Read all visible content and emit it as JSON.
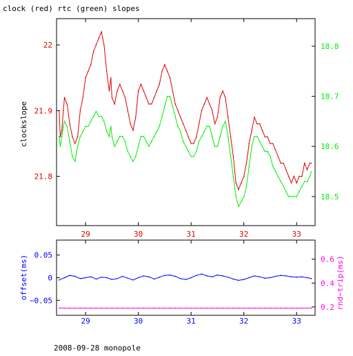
{
  "title": "clock (red) rtc (green) slopes",
  "footer": "2008-09-28 monopole",
  "colors": {
    "background": "#ffffff",
    "axis": "#000000",
    "clock": "#dd0000",
    "rtc": "#00ee00",
    "offset": "#0000ff",
    "roundtrip": "#ff00ff"
  },
  "chart_data": [
    {
      "type": "line",
      "title": "clock (red) rtc (green) slopes",
      "xlim": [
        28.45,
        33.35
      ],
      "x_ticks": [
        29,
        30,
        31,
        32,
        33
      ],
      "x_tick_labels": [
        "29",
        "30",
        "31",
        "32",
        "33"
      ],
      "left_axis": {
        "label": "clockslope",
        "ylim": [
          21.725,
          22.04
        ],
        "ticks": [
          21.8,
          21.9,
          22
        ],
        "tick_labels": [
          "21.8",
          "21.9",
          "22"
        ]
      },
      "right_axis": {
        "label": "",
        "ylim": [
          18.442,
          18.855
        ],
        "ticks": [
          18.5,
          18.6,
          18.7,
          18.8
        ],
        "tick_labels": [
          "18.5",
          "18.6",
          "18.7",
          "18.8"
        ]
      },
      "series": [
        {
          "name": "clock (red)",
          "axis": "left",
          "color": "#dd0000",
          "x": [
            28.5,
            28.52,
            28.55,
            28.58,
            28.6,
            28.65,
            28.7,
            28.75,
            28.8,
            28.85,
            28.9,
            28.95,
            29.0,
            29.05,
            29.1,
            29.15,
            29.2,
            29.25,
            29.3,
            29.35,
            29.4,
            29.45,
            29.48,
            29.5,
            29.55,
            29.6,
            29.65,
            29.7,
            29.75,
            29.8,
            29.85,
            29.9,
            29.95,
            30.0,
            30.05,
            30.1,
            30.15,
            30.2,
            30.25,
            30.3,
            30.35,
            30.4,
            30.45,
            30.5,
            30.55,
            30.6,
            30.65,
            30.7,
            30.75,
            30.8,
            30.85,
            30.9,
            30.95,
            31.0,
            31.05,
            31.1,
            31.15,
            31.2,
            31.25,
            31.3,
            31.35,
            31.4,
            31.45,
            31.5,
            31.55,
            31.6,
            31.65,
            31.7,
            31.75,
            31.8,
            31.85,
            31.9,
            31.95,
            32.0,
            32.05,
            32.1,
            32.15,
            32.2,
            32.25,
            32.3,
            32.35,
            32.4,
            32.45,
            32.5,
            32.55,
            32.6,
            32.65,
            32.7,
            32.75,
            32.8,
            32.85,
            32.9,
            32.95,
            33.0,
            33.05,
            33.1,
            33.15,
            33.2,
            33.25,
            33.28
          ],
          "y": [
            21.9,
            21.86,
            21.87,
            21.9,
            21.92,
            21.91,
            21.88,
            21.86,
            21.85,
            21.86,
            21.9,
            21.92,
            21.95,
            21.96,
            21.97,
            21.99,
            22.0,
            22.01,
            22.02,
            22.0,
            21.96,
            21.93,
            21.95,
            21.92,
            21.91,
            21.93,
            21.94,
            21.93,
            21.92,
            21.9,
            21.88,
            21.87,
            21.89,
            21.93,
            21.94,
            21.93,
            21.92,
            21.91,
            21.91,
            21.92,
            21.93,
            21.94,
            21.96,
            21.97,
            21.96,
            21.95,
            21.93,
            21.91,
            21.9,
            21.89,
            21.88,
            21.87,
            21.86,
            21.85,
            21.85,
            21.86,
            21.88,
            21.9,
            21.91,
            21.92,
            21.91,
            21.9,
            21.88,
            21.89,
            21.92,
            21.93,
            21.92,
            21.89,
            21.86,
            21.83,
            21.79,
            21.78,
            21.79,
            21.8,
            21.82,
            21.85,
            21.87,
            21.89,
            21.88,
            21.88,
            21.87,
            21.86,
            21.86,
            21.85,
            21.85,
            21.84,
            21.83,
            21.82,
            21.82,
            21.81,
            21.8,
            21.79,
            21.8,
            21.79,
            21.8,
            21.8,
            21.82,
            21.81,
            21.82,
            21.82
          ]
        },
        {
          "name": "rtc (green)",
          "axis": "right",
          "color": "#00ee00",
          "x": [
            28.5,
            28.52,
            28.55,
            28.58,
            28.6,
            28.65,
            28.7,
            28.75,
            28.8,
            28.85,
            28.9,
            28.95,
            29.0,
            29.05,
            29.1,
            29.15,
            29.2,
            29.25,
            29.3,
            29.35,
            29.4,
            29.45,
            29.48,
            29.5,
            29.55,
            29.6,
            29.65,
            29.7,
            29.75,
            29.8,
            29.85,
            29.9,
            29.95,
            30.0,
            30.05,
            30.1,
            30.15,
            30.2,
            30.25,
            30.3,
            30.35,
            30.4,
            30.45,
            30.5,
            30.55,
            30.6,
            30.65,
            30.7,
            30.75,
            30.8,
            30.85,
            30.9,
            30.95,
            31.0,
            31.05,
            31.1,
            31.15,
            31.2,
            31.25,
            31.3,
            31.35,
            31.4,
            31.45,
            31.5,
            31.55,
            31.6,
            31.65,
            31.7,
            31.75,
            31.8,
            31.85,
            31.9,
            31.95,
            32.0,
            32.05,
            32.1,
            32.15,
            32.2,
            32.25,
            32.3,
            32.35,
            32.4,
            32.45,
            32.5,
            32.55,
            32.6,
            32.65,
            32.7,
            32.75,
            32.8,
            32.85,
            32.9,
            32.95,
            33.0,
            33.05,
            33.1,
            33.15,
            33.2,
            33.25,
            33.28
          ],
          "y": [
            18.62,
            18.6,
            18.62,
            18.64,
            18.65,
            18.64,
            18.61,
            18.58,
            18.57,
            18.6,
            18.62,
            18.63,
            18.64,
            18.64,
            18.65,
            18.66,
            18.67,
            18.66,
            18.66,
            18.65,
            18.63,
            18.62,
            18.64,
            18.62,
            18.6,
            18.61,
            18.62,
            18.62,
            18.61,
            18.59,
            18.58,
            18.57,
            18.58,
            18.6,
            18.62,
            18.62,
            18.61,
            18.6,
            18.61,
            18.62,
            18.63,
            18.64,
            18.66,
            18.68,
            18.7,
            18.7,
            18.68,
            18.66,
            18.64,
            18.63,
            18.61,
            18.6,
            18.59,
            18.58,
            18.58,
            18.59,
            18.61,
            18.62,
            18.63,
            18.64,
            18.64,
            18.62,
            18.6,
            18.6,
            18.62,
            18.64,
            18.65,
            18.62,
            18.58,
            18.54,
            18.5,
            18.48,
            18.49,
            18.5,
            18.52,
            18.56,
            18.6,
            18.62,
            18.62,
            18.61,
            18.6,
            18.59,
            18.59,
            18.58,
            18.56,
            18.55,
            18.54,
            18.53,
            18.52,
            18.51,
            18.5,
            18.5,
            18.5,
            18.5,
            18.51,
            18.52,
            18.53,
            18.53,
            18.54,
            18.55
          ]
        }
      ]
    },
    {
      "type": "line",
      "xlim": [
        28.45,
        33.35
      ],
      "x_ticks": [
        29,
        30,
        31,
        32,
        33
      ],
      "x_tick_labels": [
        "29",
        "30",
        "31",
        "32",
        "33"
      ],
      "left_axis": {
        "label": "offset(ms)",
        "ylim": [
          -0.083,
          0.083
        ],
        "ticks": [
          0.05,
          0,
          -0.05
        ],
        "tick_labels": [
          "0.05",
          "0",
          "−0.05"
        ]
      },
      "right_axis": {
        "label": "rnd−trip(ms)",
        "ylim": [
          0.13,
          0.76
        ],
        "ticks": [
          0.6,
          0.4,
          0.2
        ],
        "tick_labels": [
          "0.6",
          "0.4",
          "0.2"
        ]
      },
      "series": [
        {
          "name": "offset",
          "axis": "left",
          "color": "#0000ff",
          "x": [
            28.5,
            28.6,
            28.7,
            28.8,
            28.9,
            29.0,
            29.1,
            29.2,
            29.3,
            29.4,
            29.5,
            29.6,
            29.7,
            29.8,
            29.9,
            30.0,
            30.1,
            30.2,
            30.3,
            30.4,
            30.5,
            30.6,
            30.7,
            30.8,
            30.9,
            31.0,
            31.1,
            31.2,
            31.3,
            31.4,
            31.5,
            31.6,
            31.7,
            31.8,
            31.9,
            32.0,
            32.1,
            32.2,
            32.3,
            32.4,
            32.5,
            32.6,
            32.7,
            32.8,
            32.9,
            33.0,
            33.1,
            33.2,
            33.28
          ],
          "y": [
            -0.005,
            0.0,
            0.005,
            0.003,
            -0.002,
            0.0,
            0.002,
            -0.003,
            0.001,
            0.0,
            -0.004,
            -0.002,
            0.003,
            -0.001,
            -0.005,
            0.0,
            0.004,
            0.002,
            -0.003,
            0.001,
            0.005,
            0.006,
            0.003,
            -0.002,
            -0.004,
            0.0,
            0.005,
            0.008,
            0.004,
            0.002,
            0.006,
            0.004,
            0.001,
            -0.003,
            -0.006,
            -0.004,
            0.0,
            0.004,
            0.002,
            -0.001,
            0.0,
            0.003,
            0.005,
            0.004,
            0.002,
            0.001,
            0.002,
            0.0,
            -0.002
          ]
        },
        {
          "name": "rnd−trip",
          "axis": "right",
          "color": "#ff00ff",
          "x": [
            28.5,
            28.6,
            28.7,
            28.8,
            28.9,
            29.0,
            29.1,
            29.2,
            29.3,
            29.4,
            29.5,
            29.6,
            29.7,
            29.8,
            29.9,
            30.0,
            30.1,
            30.2,
            30.3,
            30.4,
            30.5,
            30.6,
            30.7,
            30.8,
            30.9,
            31.0,
            31.1,
            31.2,
            31.3,
            31.4,
            31.5,
            31.6,
            31.7,
            31.8,
            31.9,
            32.0,
            32.1,
            32.2,
            32.3,
            32.4,
            32.5,
            32.6,
            32.7,
            32.8,
            32.9,
            33.0,
            33.1,
            33.2,
            33.28
          ],
          "y": [
            0.19,
            0.19,
            0.19,
            0.19,
            0.19,
            0.19,
            0.19,
            0.19,
            0.19,
            0.19,
            0.19,
            0.19,
            0.19,
            0.19,
            0.19,
            0.19,
            0.19,
            0.19,
            0.19,
            0.19,
            0.19,
            0.19,
            0.19,
            0.19,
            0.19,
            0.19,
            0.19,
            0.19,
            0.19,
            0.19,
            0.19,
            0.19,
            0.19,
            0.19,
            0.19,
            0.19,
            0.19,
            0.19,
            0.19,
            0.19,
            0.19,
            0.19,
            0.19,
            0.19,
            0.19,
            0.19,
            0.19,
            0.19,
            0.19
          ]
        }
      ]
    }
  ]
}
